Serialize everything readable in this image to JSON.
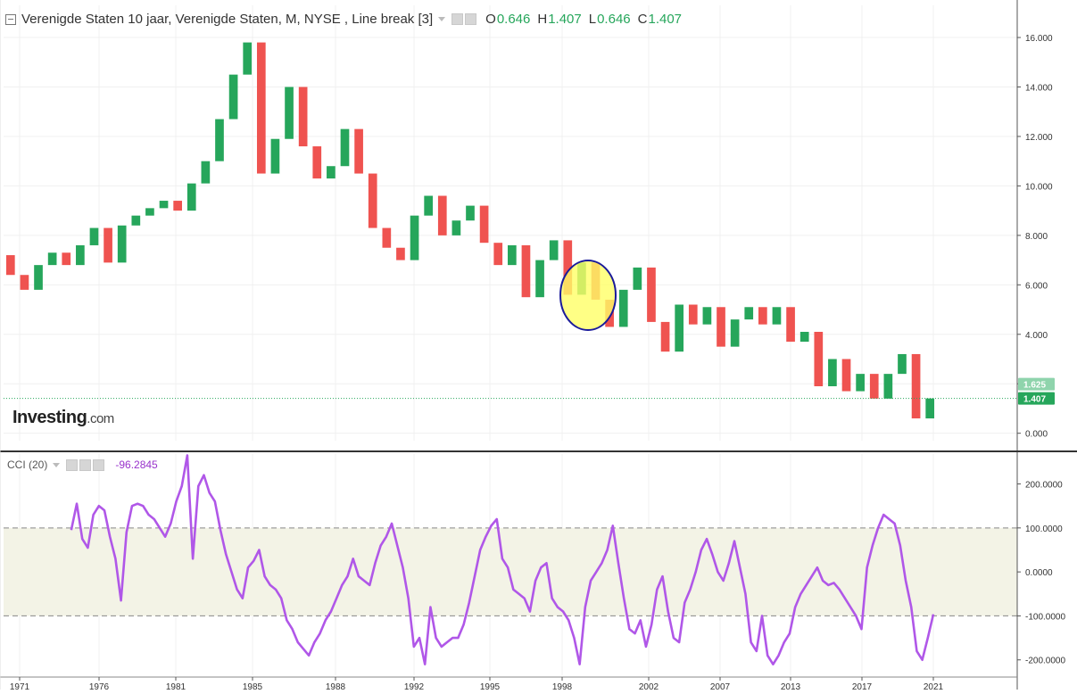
{
  "header": {
    "title": "Verenigde Staten 10 jaar, Verenigde Staten, M, NYSE , Line break [3]",
    "ohlc": [
      {
        "k": "O",
        "v": "0.646"
      },
      {
        "k": "H",
        "v": "1.407"
      },
      {
        "k": "L",
        "v": "0.646"
      },
      {
        "k": "C",
        "v": "1.407"
      }
    ]
  },
  "logo": {
    "text": "Investing",
    "suffix": ".com"
  },
  "indicator": {
    "label": "CCI (20)",
    "value": "-96.2845"
  },
  "colors": {
    "up": "#26a65b",
    "down": "#ef5350",
    "cci_line": "#b057e8",
    "band_fill": "#f3f3e6",
    "last_label_bg": "#26a65b",
    "prev_label_bg": "#8fd4ac",
    "highlight_fill": "#ffff66",
    "highlight_stroke": "#1a1a9a"
  },
  "chart_data": [
    {
      "type": "line break",
      "name": "Verenigde Staten 10 jaar",
      "ylim": [
        -0.3,
        17.3
      ],
      "y_ticks": [
        "0.000",
        "2.000",
        "4.000",
        "6.000",
        "8.000",
        "10.000",
        "12.000",
        "14.000",
        "16.000"
      ],
      "x_ticks": [
        "1971",
        "1976",
        "1981",
        "1985",
        "1988",
        "1992",
        "1995",
        "1998",
        "2002",
        "2007",
        "2013",
        "2017",
        "2021"
      ],
      "price_labels": [
        "1.625",
        "1.407"
      ],
      "last_price": 1.407,
      "path": [
        7.2,
        6.4,
        5.8,
        6.8,
        7.3,
        6.8,
        7.6,
        8.3,
        6.9,
        8.4,
        8.8,
        9.1,
        9.4,
        9.0,
        10.1,
        11.0,
        12.7,
        14.5,
        15.8,
        10.5,
        11.9,
        14.0,
        11.6,
        10.3,
        10.8,
        12.3,
        10.5,
        8.3,
        7.5,
        7.0,
        8.8,
        9.6,
        8.0,
        8.6,
        9.2,
        7.7,
        6.8,
        7.6,
        5.5,
        7.0,
        7.8,
        5.6,
        6.9,
        5.4,
        4.3,
        5.8,
        6.7,
        4.5,
        3.3,
        5.2,
        4.4,
        5.1,
        3.5,
        4.6,
        5.1,
        4.4,
        5.1,
        3.7,
        4.1,
        1.9,
        3.0,
        1.7,
        2.4,
        1.4,
        2.4,
        3.2,
        0.6,
        1.407
      ]
    },
    {
      "type": "line",
      "name": "CCI (20)",
      "ylim": [
        -235,
        270
      ],
      "y_ticks": [
        "-200.0000",
        "-100.0000",
        "0.0000",
        "100.0000",
        "200.0000"
      ],
      "band": [
        -100,
        100
      ],
      "x_start_year": 1974.25,
      "x_end_year": 2021.0,
      "values": [
        95,
        155,
        75,
        55,
        130,
        150,
        140,
        80,
        30,
        -65,
        90,
        150,
        155,
        150,
        130,
        120,
        100,
        80,
        110,
        160,
        195,
        265,
        30,
        195,
        220,
        180,
        160,
        95,
        40,
        0,
        -40,
        -60,
        10,
        25,
        50,
        -10,
        -30,
        -40,
        -60,
        -110,
        -130,
        -160,
        -175,
        -190,
        -160,
        -140,
        -110,
        -90,
        -60,
        -30,
        -10,
        30,
        -10,
        -20,
        -30,
        20,
        60,
        80,
        110,
        60,
        10,
        -60,
        -170,
        -150,
        -210,
        -80,
        -150,
        -170,
        -160,
        -150,
        -150,
        -120,
        -70,
        -10,
        50,
        80,
        105,
        120,
        30,
        10,
        -40,
        -50,
        -60,
        -90,
        -20,
        10,
        20,
        -60,
        -80,
        -90,
        -110,
        -150,
        -210,
        -80,
        -20,
        0,
        20,
        50,
        105,
        20,
        -60,
        -130,
        -140,
        -110,
        -170,
        -120,
        -40,
        -10,
        -90,
        -150,
        -160,
        -70,
        -40,
        0,
        50,
        75,
        40,
        0,
        -20,
        20,
        70,
        10,
        -50,
        -160,
        -180,
        -100,
        -190,
        -210,
        -190,
        -160,
        -140,
        -80,
        -50,
        -30,
        -10,
        10,
        -20,
        -30,
        -25,
        -40,
        -60,
        -80,
        -100,
        -130,
        10,
        60,
        100,
        130,
        120,
        110,
        60,
        -20,
        -80,
        -180,
        -200,
        -150,
        -96.3
      ]
    }
  ]
}
